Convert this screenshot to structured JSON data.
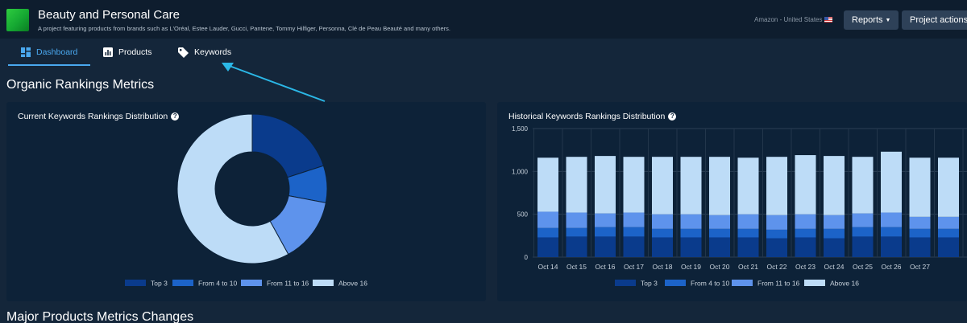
{
  "header": {
    "title": "Beauty and Personal Care",
    "description": "A project featuring products from brands such as L'Oréal, Estee Lauder, Gucci, Pantene, Tommy Hilfiger, Personna, Clé de Peau Beauté and many others.",
    "marketplace": "Amazon - United States",
    "reports_label": "Reports",
    "project_actions_label": "Project actions"
  },
  "tabs": [
    {
      "label": "Dashboard",
      "icon": "dashboard-icon",
      "active": true
    },
    {
      "label": "Products",
      "icon": "bar-chart-icon",
      "active": false
    },
    {
      "label": "Keywords",
      "icon": "tag-icon",
      "active": false
    }
  ],
  "sections": {
    "organic": "Organic Rankings Metrics",
    "major": "Major Products Metrics Changes"
  },
  "cards": {
    "current_title": "Current Keywords Rankings Distribution",
    "history_title": "Historical Keywords Rankings Distribution"
  },
  "colors": {
    "top3": "#0a3b8c",
    "from4to10": "#1c63c8",
    "from11to16": "#5e93ec",
    "above16": "#bddcf7",
    "accent": "#4aa8ef"
  },
  "chart_data": [
    {
      "type": "pie",
      "title": "Current Keywords Rankings Distribution",
      "labels": [
        "Top 3",
        "From 4 to 10",
        "From 11 to 16",
        "Above 16"
      ],
      "values": [
        20,
        8,
        14,
        58
      ],
      "legend": "bottom"
    },
    {
      "type": "bar",
      "stacked": true,
      "title": "Historical Keywords Rankings Distribution",
      "categories": [
        "Oct 14",
        "Oct 15",
        "Oct 16",
        "Oct 17",
        "Oct 18",
        "Oct 19",
        "Oct 20",
        "Oct 21",
        "Oct 22",
        "Oct 23",
        "Oct 24",
        "Oct 25",
        "Oct 26",
        "Oct 27",
        ""
      ],
      "series": [
        {
          "name": "Top 3",
          "values": [
            230,
            240,
            240,
            240,
            230,
            230,
            230,
            230,
            220,
            230,
            220,
            240,
            240,
            230,
            230
          ]
        },
        {
          "name": "From 4 to 10",
          "values": [
            110,
            100,
            110,
            110,
            100,
            100,
            100,
            100,
            100,
            100,
            110,
            110,
            110,
            100,
            100
          ]
        },
        {
          "name": "From 11 to 16",
          "values": [
            190,
            180,
            160,
            170,
            170,
            170,
            160,
            170,
            170,
            170,
            160,
            160,
            170,
            140,
            140
          ]
        },
        {
          "name": "Above 16",
          "values": [
            630,
            650,
            670,
            650,
            670,
            670,
            680,
            660,
            680,
            690,
            690,
            660,
            710,
            690,
            690
          ]
        }
      ],
      "yticks": [
        "0",
        "500",
        "1,000",
        "1,500"
      ],
      "ylim": [
        0,
        1500
      ],
      "grid": true,
      "legend": "bottom"
    }
  ]
}
